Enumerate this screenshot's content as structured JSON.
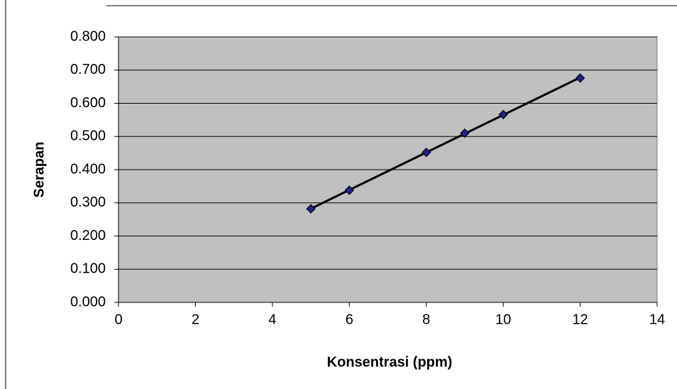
{
  "chart_data": {
    "type": "scatter",
    "x_label": "Konsentrasi (ppm)",
    "y_label": "Serapan",
    "series": [
      {
        "x": [
          5,
          6,
          8,
          9,
          10,
          12
        ],
        "values": [
          0.282,
          0.338,
          0.452,
          0.51,
          0.566,
          0.676
        ],
        "color": "#20208a"
      }
    ],
    "trendline": true,
    "trendline_color": "#000000",
    "xlim": [
      0,
      14
    ],
    "xticks": [
      0,
      2,
      4,
      6,
      8,
      10,
      12,
      14
    ],
    "ylim": [
      0,
      0.8
    ],
    "yticks": [
      {
        "value": 0,
        "label": "0.000"
      },
      {
        "value": 0.1,
        "label": "0.100"
      },
      {
        "value": 0.2,
        "label": "0.200"
      },
      {
        "value": 0.3,
        "label": "0.300"
      },
      {
        "value": 0.4,
        "label": "0.400"
      },
      {
        "value": 0.5,
        "label": "0.500"
      },
      {
        "value": 0.6,
        "label": "0.600"
      },
      {
        "value": 0.7,
        "label": "0.700"
      },
      {
        "value": 0.8,
        "label": "0.800"
      }
    ],
    "grid": true,
    "plot_background": "#c0c0c0"
  }
}
